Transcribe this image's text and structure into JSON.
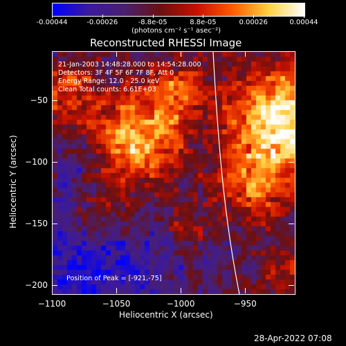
{
  "colorbar": {
    "tick_labels": [
      "-0.00044",
      "-0.00026",
      "-8.8e-05",
      "8.8e-05",
      "0.00026",
      "0.00044"
    ],
    "unit_text": "(photons cm⁻² s⁻¹ asec⁻²)",
    "range": [
      -0.00044,
      0.00044
    ],
    "colors": [
      "#0000ff",
      "#3b1a9c",
      "#4a1f70",
      "#6b1010",
      "#c81000",
      "#ff5a00",
      "#ffd040",
      "#ffffff"
    ]
  },
  "title": "Reconstructed RHESSI Image",
  "overlay": {
    "time_line": "21-Jan-2003 14:48:28.000 to 14:54:28.000",
    "detectors_line": "Detectors: 3F 4F 5F 6F 7F 8F, Att 0",
    "energy_line": "Energy Range: 12.0 - 25.0 keV",
    "clean_line": "Clean  Total counts: 6.61E+03",
    "peak_line": "Position of Peak = [-921,-75]"
  },
  "axes": {
    "xlabel": "Heliocentric X (arcsec)",
    "ylabel": "Heliocentric Y (arcsec)",
    "xlim": [
      -1100,
      -912
    ],
    "ylim": [
      -207,
      -10
    ],
    "x_ticks": [
      {
        "value": -1100,
        "label": "−1100"
      },
      {
        "value": -1050,
        "label": "−1050"
      },
      {
        "value": -1000,
        "label": "−1000"
      },
      {
        "value": -950,
        "label": "−950"
      }
    ],
    "y_ticks": [
      {
        "value": -50,
        "label": "−50"
      },
      {
        "value": -100,
        "label": "−100"
      },
      {
        "value": -150,
        "label": "−150"
      },
      {
        "value": -200,
        "label": "−200"
      }
    ]
  },
  "footer": {
    "timestamp": "28-Apr-2022 07:08"
  }
}
